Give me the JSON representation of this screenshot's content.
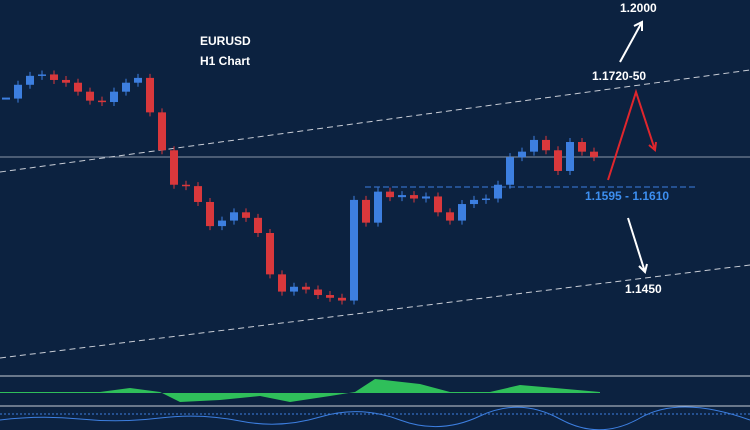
{
  "chart_data": {
    "type": "candlestick",
    "title": "EURUSD",
    "subtitle": "H1 Chart",
    "values": [
      1.1725,
      1.1745,
      1.1758,
      1.176,
      1.1752,
      1.1748,
      1.1735,
      1.1722,
      1.172,
      1.1735,
      1.1748,
      1.1755,
      1.1705,
      1.165,
      1.16,
      1.1598,
      1.1575,
      1.154,
      1.1548,
      1.156,
      1.1552,
      1.153,
      1.147,
      1.1445,
      1.1452,
      1.1448,
      1.144,
      1.1436,
      1.1432,
      1.1578,
      1.1545,
      1.159,
      1.1582,
      1.1585,
      1.158,
      1.1583,
      1.156,
      1.1548,
      1.1572,
      1.1578,
      1.158,
      1.16,
      1.164,
      1.1648,
      1.1665,
      1.165,
      1.162,
      1.1662,
      1.1648,
      1.164
    ],
    "up_color": "#3d7fe0",
    "down_color": "#d9383c",
    "ylim": [
      1.1324,
      1.1868
    ],
    "annotations": [
      "1.2000",
      "1.1720-50",
      "1.1595 - 1.1610",
      "1.1450"
    ]
  }
}
